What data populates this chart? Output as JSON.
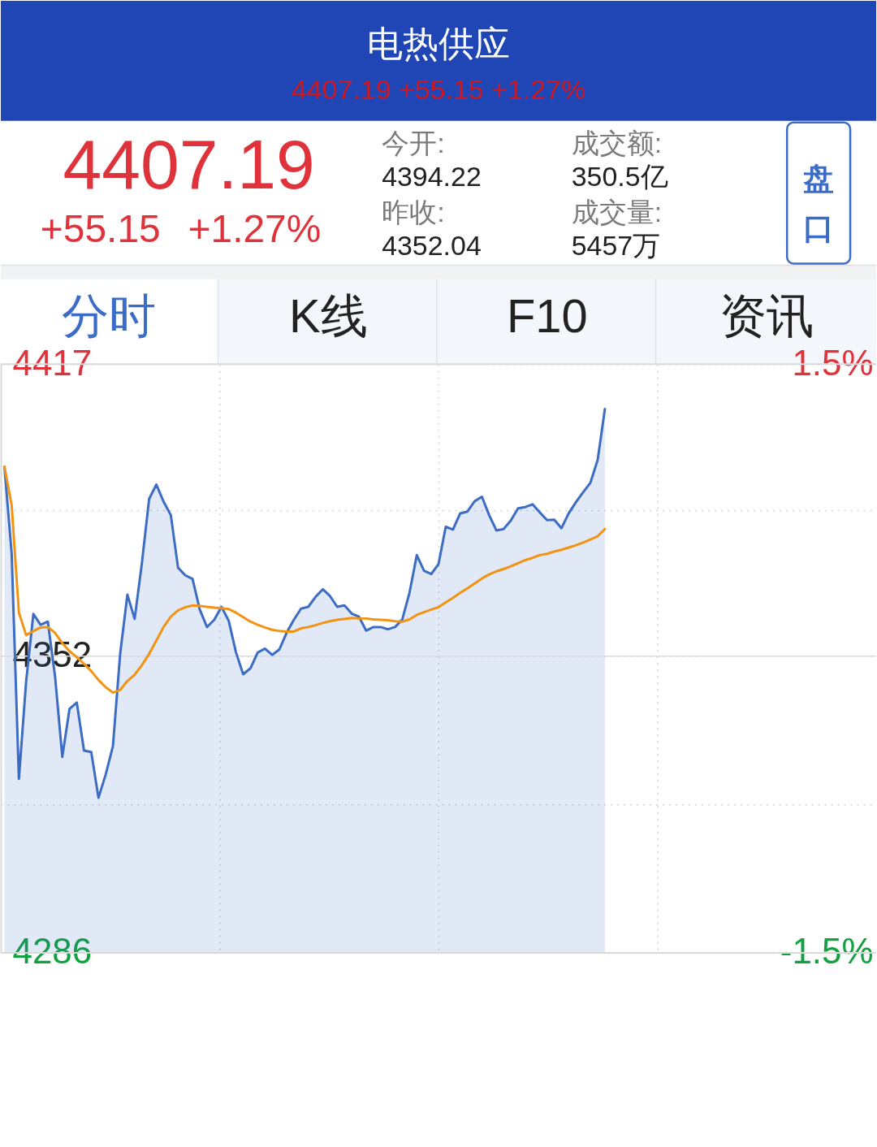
{
  "chart_data": [
    {
      "type": "other",
      "title": "电热供应",
      "subtitle": "4407.19 +55.15 +1.27%",
      "annotations": [
        "4407.19",
        "+55.15",
        "+1.27%",
        "今开:",
        "4394.22",
        "昨收:",
        "4352.04",
        "成交额:",
        "350.5亿",
        "成交量:",
        "5457万",
        "盘口",
        "分时",
        "K线",
        "F10",
        "资讯"
      ]
    },
    {
      "type": "line",
      "categories": [
        null,
        null,
        null,
        null,
        null,
        null,
        null,
        null,
        null,
        null,
        null,
        null,
        null,
        null,
        null,
        null,
        null,
        null,
        null,
        null,
        null,
        null,
        null,
        null,
        null,
        null,
        null,
        null,
        null,
        null,
        null,
        null,
        null,
        null,
        null,
        null,
        null,
        null,
        null,
        null,
        null,
        null,
        null,
        null,
        null,
        null,
        null,
        null,
        null,
        null,
        null,
        null,
        null,
        null,
        null,
        null,
        null,
        null,
        null,
        null,
        null,
        null,
        null,
        null,
        null,
        null,
        null,
        null,
        null,
        null,
        null,
        null,
        null,
        null,
        null,
        null,
        null,
        null,
        null,
        null,
        null,
        null,
        null,
        null
      ],
      "series": [
        {
          "type": "area",
          "color": "#3c6cc4",
          "values": [
            4394.2,
            4374.9,
            4324.7,
            4346.4,
            4361.4,
            4359.0,
            4359.7,
            4347.5,
            4329.6,
            4340.3,
            4341.7,
            4331.0,
            4330.7,
            4320.5,
            4325.7,
            4332.0,
            4352.6,
            4365.7,
            4360.3,
            4372.7,
            4387.0,
            4390.2,
            4386.4,
            4383.4,
            4371.7,
            4370.0,
            4369.2,
            4362.4,
            4358.5,
            4360.1,
            4363.0,
            4359.9,
            4352.9,
            4348.0,
            4349.3,
            4352.8,
            4353.7,
            4352.3,
            4353.5,
            4357.2,
            4360.1,
            4362.6,
            4363.0,
            4365.2,
            4366.9,
            4365.4,
            4363.0,
            4363.3,
            4361.5,
            4360.8,
            4357.7,
            4358.5,
            4358.5,
            4358.0,
            4358.5,
            4360.2,
            4366.2,
            4374.5,
            4371.0,
            4370.3,
            4372.5,
            4380.8,
            4380.2,
            4383.8,
            4384.2,
            4386.5,
            4387.5,
            4383.4,
            4380.0,
            4380.3,
            4382.2,
            4384.9,
            4385.2,
            4385.8,
            4384.0,
            4382.3,
            4382.4,
            4380.5,
            4383.8,
            4386.3,
            4388.5,
            4390.6,
            4395.7,
            4407.0
          ]
        },
        {
          "type": "line",
          "color": "#f39313",
          "values": [
            4394.2,
            4385.6,
            4361.7,
            4356.7,
            4357.6,
            4358.4,
            4358.5,
            4357.2,
            4354.9,
            4353.1,
            4351.8,
            4350.3,
            4348.7,
            4346.7,
            4345.1,
            4343.9,
            4344.5,
            4346.5,
            4347.9,
            4350.0,
            4352.5,
            4355.5,
            4358.5,
            4360.8,
            4362.2,
            4362.9,
            4363.3,
            4363.2,
            4363.0,
            4362.8,
            4362.7,
            4362.5,
            4361.7,
            4360.7,
            4359.7,
            4359.0,
            4358.4,
            4357.9,
            4357.6,
            4357.5,
            4357.5,
            4358.2,
            4358.5,
            4358.9,
            4359.4,
            4359.8,
            4360.1,
            4360.3,
            4360.5,
            4360.4,
            4360.4,
            4360.2,
            4360.1,
            4360.0,
            4359.8,
            4359.7,
            4360.2,
            4361.2,
            4361.8,
            4362.4,
            4362.9,
            4364.0,
            4365.0,
            4366.1,
            4367.1,
            4368.2,
            4369.3,
            4370.2,
            4370.9,
            4371.4,
            4372.0,
            4372.7,
            4373.4,
            4373.9,
            4374.5,
            4374.8,
            4375.3,
            4375.7,
            4376.2,
            4376.7,
            4377.3,
            4378.0,
            4378.7,
            4380.3
          ]
        }
      ],
      "ylim": [
        4286,
        4417
      ],
      "yticks": [
        4286,
        {
          "value": 4319,
          "label": null
        },
        4352,
        {
          "value": 4384.5,
          "label": null
        },
        4417
      ],
      "y2lim": [
        -1.5,
        1.5
      ],
      "y2ticks": [
        {
          "value": -1.5,
          "label": "-1.5%"
        },
        {
          "value": 1.5,
          "label": "1.5%"
        }
      ],
      "grid": true,
      "ref_lines": [
        {
          "axis": "y",
          "value": 4352,
          "color": "#dcdcdc",
          "line_style": "solid"
        }
      ]
    }
  ]
}
